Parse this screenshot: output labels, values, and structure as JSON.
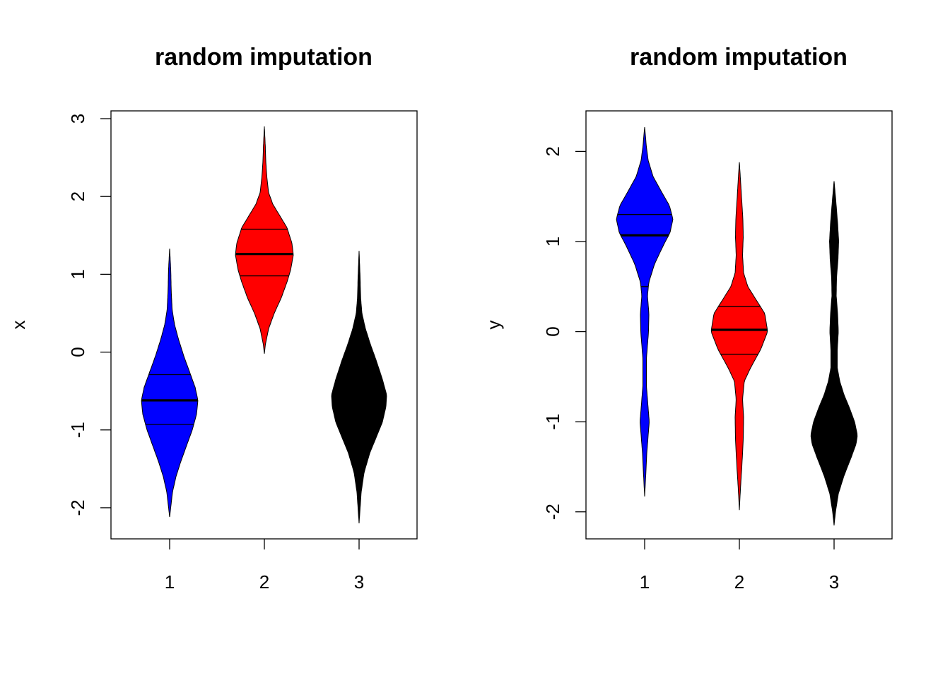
{
  "chart_data": [
    {
      "type": "violin",
      "title": "random imputation",
      "xlabel": "",
      "ylabel": "x",
      "categories": [
        "1",
        "2",
        "3"
      ],
      "x_ticks": [
        "1",
        "2",
        "3"
      ],
      "y_ticks": [
        -2,
        -1,
        0,
        1,
        2,
        3
      ],
      "y_tick_labels": [
        "-2",
        "-1",
        "0",
        "1",
        "2",
        "3"
      ],
      "ylim": [
        -2.4,
        3.1
      ],
      "series": [
        {
          "category": "1",
          "color": "#0000FF",
          "min": -2.12,
          "max": 1.33,
          "q1": -0.93,
          "median": -0.62,
          "q3": -0.29,
          "density_halfwidth": [
            [
              -2.12,
              0
            ],
            [
              -2.0,
              1.5
            ],
            [
              -1.8,
              4
            ],
            [
              -1.6,
              9
            ],
            [
              -1.4,
              16
            ],
            [
              -1.2,
              24
            ],
            [
              -1.0,
              32
            ],
            [
              -0.8,
              38
            ],
            [
              -0.62,
              40
            ],
            [
              -0.45,
              36
            ],
            [
              -0.25,
              28
            ],
            [
              -0.05,
              20
            ],
            [
              0.15,
              13
            ],
            [
              0.35,
              7
            ],
            [
              0.55,
              3.5
            ],
            [
              0.8,
              2.2
            ],
            [
              1.05,
              1.6
            ],
            [
              1.33,
              0
            ]
          ]
        },
        {
          "category": "2",
          "color": "#FF0000",
          "min": -0.02,
          "max": 2.9,
          "q1": 0.98,
          "median": 1.26,
          "q3": 1.58,
          "density_halfwidth": [
            [
              -0.02,
              0
            ],
            [
              0.1,
              1.5
            ],
            [
              0.3,
              6
            ],
            [
              0.5,
              14
            ],
            [
              0.7,
              24
            ],
            [
              0.9,
              32
            ],
            [
              1.05,
              37
            ],
            [
              1.25,
              41
            ],
            [
              1.4,
              39
            ],
            [
              1.6,
              32
            ],
            [
              1.75,
              22
            ],
            [
              1.9,
              12
            ],
            [
              2.05,
              6
            ],
            [
              2.25,
              3.5
            ],
            [
              2.45,
              2
            ],
            [
              2.65,
              1.3
            ],
            [
              2.9,
              0
            ]
          ]
        },
        {
          "category": "3",
          "color": "#000000",
          "min": -2.2,
          "max": 1.3,
          "q1": -1.0,
          "median": -0.65,
          "q3": -0.3,
          "density_halfwidth": [
            [
              -2.2,
              0
            ],
            [
              -2.0,
              1.5
            ],
            [
              -1.8,
              3
            ],
            [
              -1.55,
              7
            ],
            [
              -1.3,
              15
            ],
            [
              -1.1,
              24
            ],
            [
              -0.9,
              33
            ],
            [
              -0.7,
              38
            ],
            [
              -0.55,
              39
            ],
            [
              -0.35,
              33
            ],
            [
              -0.1,
              24
            ],
            [
              0.1,
              16
            ],
            [
              0.3,
              9
            ],
            [
              0.5,
              4
            ],
            [
              0.7,
              2.2
            ],
            [
              0.95,
              1.5
            ],
            [
              1.3,
              0
            ]
          ]
        }
      ]
    },
    {
      "type": "violin",
      "title": "random imputation",
      "xlabel": "",
      "ylabel": "y",
      "categories": [
        "1",
        "2",
        "3"
      ],
      "x_ticks": [
        "1",
        "2",
        "3"
      ],
      "y_ticks": [
        -2,
        -1,
        0,
        1,
        2
      ],
      "y_tick_labels": [
        "-2",
        "-1",
        "0",
        "1",
        "2"
      ],
      "ylim": [
        -2.3,
        2.45
      ],
      "series": [
        {
          "category": "1",
          "color": "#0000FF",
          "min": -1.83,
          "max": 2.27,
          "q1": 0.5,
          "median": 1.07,
          "q3": 1.3,
          "density_halfwidth": [
            [
              -1.83,
              0
            ],
            [
              -1.6,
              1.5
            ],
            [
              -1.35,
              3
            ],
            [
              -1.15,
              5
            ],
            [
              -1.0,
              6.5
            ],
            [
              -0.85,
              5
            ],
            [
              -0.6,
              2.5
            ],
            [
              -0.3,
              2.5
            ],
            [
              0.0,
              5.5
            ],
            [
              0.2,
              6
            ],
            [
              0.4,
              4
            ],
            [
              0.55,
              6
            ],
            [
              0.75,
              14
            ],
            [
              0.95,
              26
            ],
            [
              1.1,
              36
            ],
            [
              1.25,
              40
            ],
            [
              1.4,
              35
            ],
            [
              1.55,
              24
            ],
            [
              1.72,
              12
            ],
            [
              1.9,
              5
            ],
            [
              2.05,
              2.5
            ],
            [
              2.27,
              0
            ]
          ]
        },
        {
          "category": "2",
          "color": "#FF0000",
          "min": -1.98,
          "max": 1.88,
          "q1": -0.25,
          "median": 0.02,
          "q3": 0.28,
          "density_halfwidth": [
            [
              -1.98,
              0
            ],
            [
              -1.75,
              1.5
            ],
            [
              -1.5,
              3.5
            ],
            [
              -1.2,
              5.5
            ],
            [
              -0.95,
              6
            ],
            [
              -0.75,
              4.5
            ],
            [
              -0.55,
              7
            ],
            [
              -0.4,
              16
            ],
            [
              -0.2,
              30
            ],
            [
              0.0,
              40
            ],
            [
              0.2,
              36
            ],
            [
              0.35,
              24
            ],
            [
              0.5,
              12
            ],
            [
              0.65,
              6
            ],
            [
              0.85,
              4.5
            ],
            [
              1.05,
              5.5
            ],
            [
              1.25,
              5
            ],
            [
              1.5,
              3
            ],
            [
              1.7,
              1.5
            ],
            [
              1.88,
              0
            ]
          ]
        },
        {
          "category": "3",
          "color": "#000000",
          "min": -2.15,
          "max": 1.67,
          "q1": -1.45,
          "median": -1.18,
          "q3": -0.85,
          "density_halfwidth": [
            [
              -2.15,
              0
            ],
            [
              -2.0,
              2
            ],
            [
              -1.8,
              6
            ],
            [
              -1.6,
              14
            ],
            [
              -1.4,
              24
            ],
            [
              -1.25,
              31
            ],
            [
              -1.15,
              33
            ],
            [
              -1.0,
              29
            ],
            [
              -0.85,
              22
            ],
            [
              -0.7,
              14
            ],
            [
              -0.55,
              8
            ],
            [
              -0.4,
              4.5
            ],
            [
              -0.2,
              4.5
            ],
            [
              0.0,
              6
            ],
            [
              0.2,
              5
            ],
            [
              0.4,
              3
            ],
            [
              0.6,
              3.5
            ],
            [
              0.8,
              5.5
            ],
            [
              1.0,
              6.5
            ],
            [
              1.2,
              5
            ],
            [
              1.45,
              2.5
            ],
            [
              1.67,
              0
            ]
          ]
        }
      ]
    }
  ]
}
